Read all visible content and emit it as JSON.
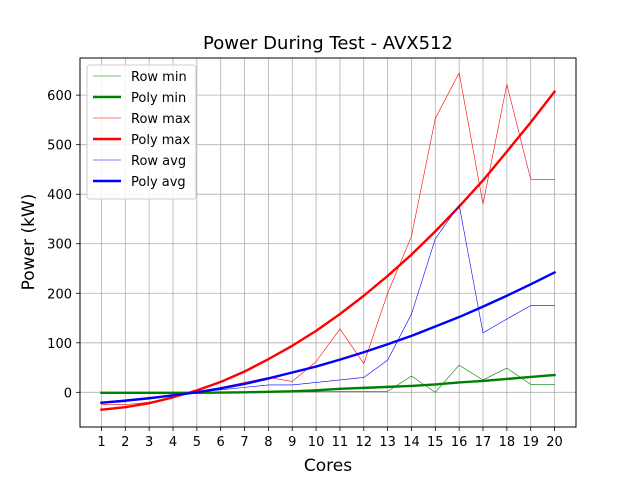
{
  "chart_data": {
    "type": "line",
    "title": "Power During Test - AVX512",
    "xlabel": "Cores",
    "ylabel": "Power (kW)",
    "xlim": [
      0.1,
      20.9
    ],
    "ylim": [
      -70,
      675
    ],
    "x_ticks": [
      1,
      2,
      3,
      4,
      5,
      6,
      7,
      8,
      9,
      10,
      11,
      12,
      13,
      14,
      15,
      16,
      17,
      18,
      19,
      20
    ],
    "y_ticks": [
      0,
      100,
      200,
      300,
      400,
      500,
      600
    ],
    "grid": true,
    "legend_position": "upper-left",
    "x": [
      1,
      2,
      3,
      4,
      5,
      6,
      7,
      8,
      9,
      10,
      11,
      12,
      13,
      14,
      15,
      16,
      17,
      18,
      19,
      20
    ],
    "series": [
      {
        "name": "Row min",
        "color": "#008000",
        "line_width": 0.6,
        "values": [
          0,
          0,
          0,
          0,
          0,
          0,
          1,
          1,
          1,
          1,
          2,
          2,
          2,
          33,
          0,
          55,
          25,
          49,
          16,
          16
        ]
      },
      {
        "name": "Poly min",
        "color": "#008000",
        "line_width": 2.4,
        "values": [
          -1,
          -1,
          -1,
          -1,
          -1,
          -0.5,
          0,
          1,
          2,
          4,
          7,
          9,
          11,
          13,
          16,
          20,
          23,
          27,
          31,
          35
        ]
      },
      {
        "name": "Row max",
        "color": "#ff0000",
        "line_width": 0.6,
        "values": [
          -25,
          -25,
          -20,
          -10,
          0,
          10,
          20,
          30,
          22,
          62,
          128,
          58,
          200,
          315,
          553,
          645,
          380,
          622,
          430,
          430
        ]
      },
      {
        "name": "Poly max",
        "color": "#ff0000",
        "line_width": 2.4,
        "values": [
          -35,
          -30,
          -22,
          -10,
          4,
          21,
          42,
          67,
          94,
          124,
          158,
          195,
          235,
          278,
          325,
          375,
          428,
          486,
          545,
          607
        ]
      },
      {
        "name": "Row avg",
        "color": "#0000ff",
        "line_width": 0.6,
        "values": [
          -20,
          -15,
          -10,
          -5,
          0,
          5,
          10,
          15,
          15,
          20,
          25,
          30,
          65,
          158,
          310,
          378,
          120,
          148,
          175,
          175
        ]
      },
      {
        "name": "Poly avg",
        "color": "#0000ff",
        "line_width": 2.4,
        "values": [
          -21,
          -17,
          -12,
          -6,
          0,
          8,
          17,
          28,
          40,
          52,
          66,
          81,
          97,
          114,
          133,
          152,
          173,
          195,
          218,
          242
        ]
      }
    ]
  }
}
